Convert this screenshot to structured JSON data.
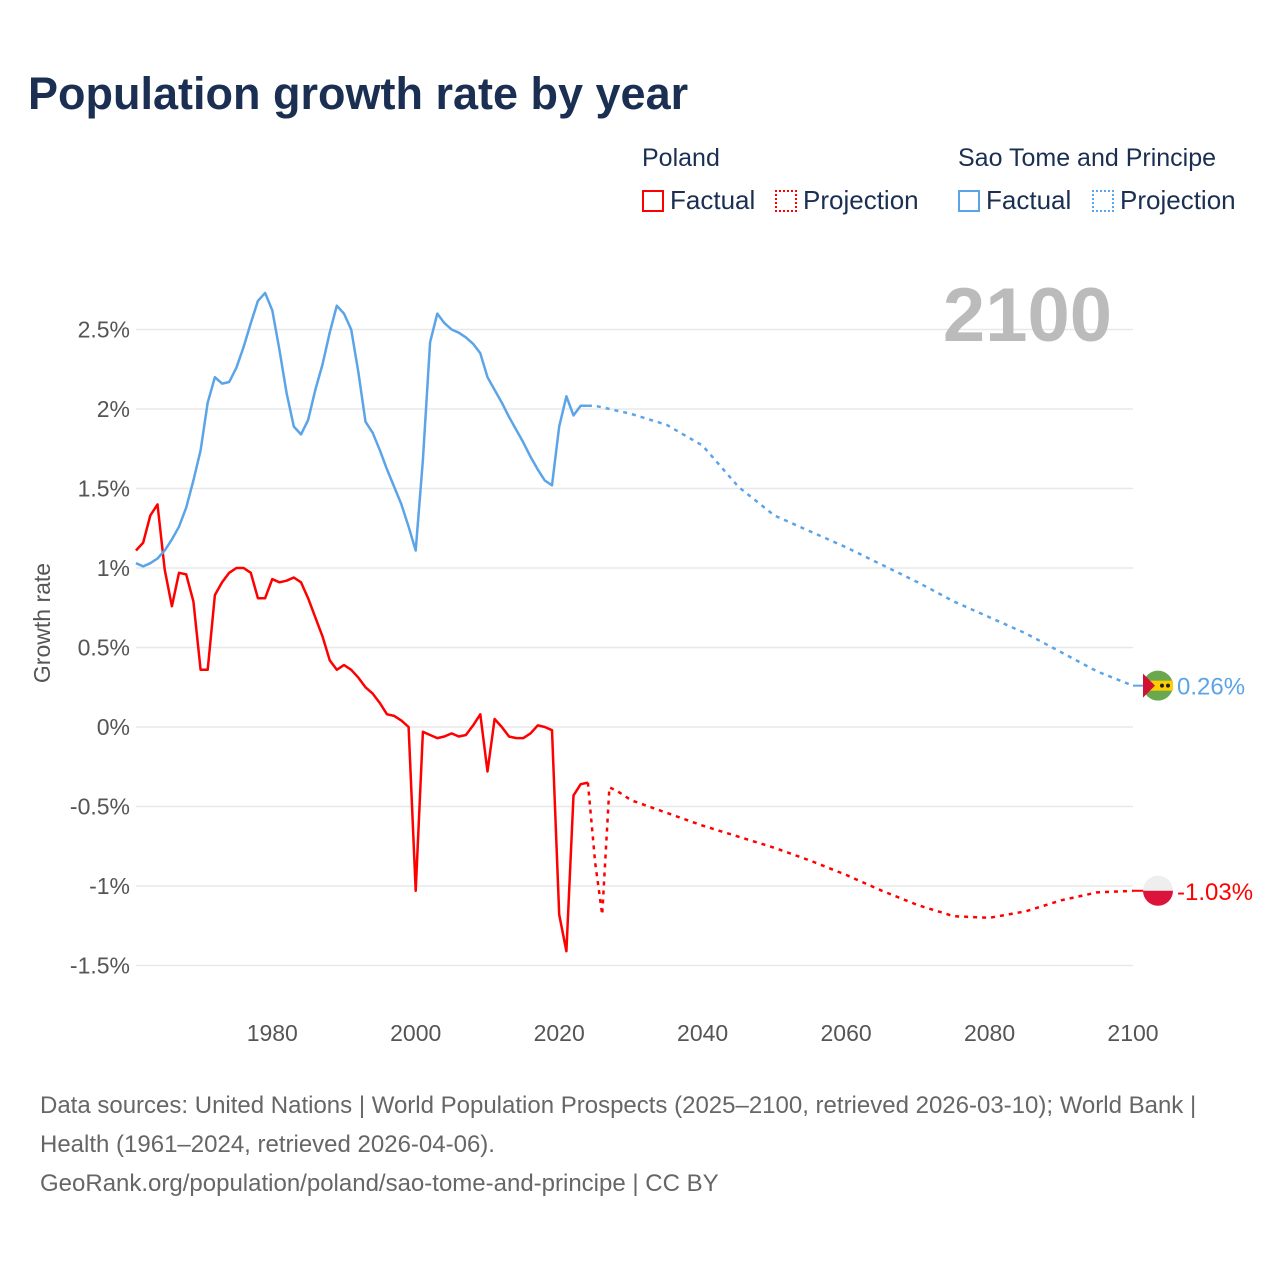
{
  "chart_data": {
    "type": "line",
    "title": "Population growth rate by year",
    "ylabel": "Growth rate",
    "xlabel": "",
    "xlim": [
      1961,
      2100
    ],
    "ylim": [
      -1.5,
      2.7
    ],
    "x_ticks": [
      "1980",
      "2000",
      "2020",
      "2040",
      "2060",
      "2080",
      "2100"
    ],
    "y_ticks": [
      {
        "v": 2.5,
        "label": "2.5%"
      },
      {
        "v": 2,
        "label": "2%"
      },
      {
        "v": 1.5,
        "label": "1.5%"
      },
      {
        "v": 1,
        "label": "1%"
      },
      {
        "v": 0.5,
        "label": "0.5%"
      },
      {
        "v": 0,
        "label": "0%"
      },
      {
        "v": -0.5,
        "label": "-0.5%"
      },
      {
        "v": -1,
        "label": "-1%"
      },
      {
        "v": -1.5,
        "label": "-1.5%"
      }
    ],
    "grid": true,
    "current_year_label": "2100",
    "series": [
      {
        "name": "Poland",
        "color": "#ff0000",
        "end_label": "-1.03%",
        "factual": {
          "x": [
            1961,
            1962,
            1963,
            1964,
            1965,
            1966,
            1967,
            1968,
            1969,
            1970,
            1971,
            1972,
            1973,
            1974,
            1975,
            1976,
            1977,
            1978,
            1979,
            1980,
            1981,
            1982,
            1983,
            1984,
            1985,
            1986,
            1987,
            1988,
            1989,
            1990,
            1991,
            1992,
            1993,
            1994,
            1995,
            1996,
            1997,
            1998,
            1999,
            2000,
            2001,
            2002,
            2003,
            2004,
            2005,
            2006,
            2007,
            2008,
            2009,
            2010,
            2011,
            2012,
            2013,
            2014,
            2015,
            2016,
            2017,
            2018,
            2019,
            2020,
            2021,
            2022,
            2023,
            2024
          ],
          "y": [
            1.11,
            1.16,
            1.33,
            1.4,
            0.99,
            0.76,
            0.97,
            0.96,
            0.79,
            0.36,
            0.36,
            0.83,
            0.91,
            0.97,
            1.0,
            1.0,
            0.97,
            0.81,
            0.81,
            0.93,
            0.91,
            0.92,
            0.94,
            0.91,
            0.81,
            0.69,
            0.57,
            0.42,
            0.36,
            0.39,
            0.36,
            0.31,
            0.25,
            0.21,
            0.15,
            0.08,
            0.07,
            0.04,
            0.0,
            -1.03,
            -0.03,
            -0.05,
            -0.07,
            -0.06,
            -0.04,
            -0.06,
            -0.05,
            0.01,
            0.08,
            -0.28,
            0.05,
            0.0,
            -0.06,
            -0.07,
            -0.07,
            -0.04,
            0.01,
            0.0,
            -0.02,
            -1.18,
            -1.41,
            -0.43,
            -0.36,
            -0.35
          ]
        },
        "projection": {
          "x": [
            2024,
            2025,
            2026,
            2027,
            2028,
            2030,
            2035,
            2040,
            2045,
            2050,
            2055,
            2060,
            2065,
            2070,
            2075,
            2080,
            2085,
            2090,
            2095,
            2100
          ],
          "y": [
            -0.35,
            -0.85,
            -1.18,
            -0.38,
            -0.4,
            -0.46,
            -0.54,
            -0.62,
            -0.69,
            -0.76,
            -0.84,
            -0.93,
            -1.03,
            -1.12,
            -1.19,
            -1.2,
            -1.16,
            -1.09,
            -1.04,
            -1.03
          ]
        }
      },
      {
        "name": "Sao Tome and Principe",
        "color": "#5ba4e8",
        "end_label": "0.26%",
        "factual": {
          "x": [
            1961,
            1962,
            1963,
            1964,
            1965,
            1966,
            1967,
            1968,
            1969,
            1970,
            1971,
            1972,
            1973,
            1974,
            1975,
            1976,
            1977,
            1978,
            1979,
            1980,
            1981,
            1982,
            1983,
            1984,
            1985,
            1986,
            1987,
            1988,
            1989,
            1990,
            1991,
            1992,
            1993,
            1994,
            1995,
            1996,
            1997,
            1998,
            1999,
            2000,
            2001,
            2002,
            2003,
            2004,
            2005,
            2006,
            2007,
            2008,
            2009,
            2010,
            2011,
            2012,
            2013,
            2014,
            2015,
            2016,
            2017,
            2018,
            2019,
            2020,
            2021,
            2022,
            2023,
            2024
          ],
          "y": [
            1.03,
            1.01,
            1.03,
            1.06,
            1.11,
            1.18,
            1.26,
            1.38,
            1.55,
            1.74,
            2.04,
            2.2,
            2.16,
            2.17,
            2.26,
            2.39,
            2.54,
            2.68,
            2.73,
            2.62,
            2.37,
            2.1,
            1.89,
            1.84,
            1.93,
            2.12,
            2.28,
            2.48,
            2.65,
            2.6,
            2.5,
            2.23,
            1.92,
            1.85,
            1.74,
            1.62,
            1.51,
            1.4,
            1.26,
            1.11,
            1.68,
            2.42,
            2.6,
            2.54,
            2.5,
            2.48,
            2.45,
            2.41,
            2.35,
            2.2,
            2.12,
            2.04,
            1.95,
            1.87,
            1.79,
            1.7,
            1.62,
            1.55,
            1.52,
            1.89,
            2.08,
            1.96,
            2.02,
            2.02
          ]
        },
        "projection": {
          "x": [
            2024,
            2025,
            2030,
            2035,
            2040,
            2045,
            2050,
            2055,
            2060,
            2065,
            2070,
            2075,
            2080,
            2085,
            2090,
            2095,
            2100
          ],
          "y": [
            2.02,
            2.02,
            1.97,
            1.9,
            1.77,
            1.51,
            1.33,
            1.23,
            1.13,
            1.02,
            0.91,
            0.79,
            0.69,
            0.59,
            0.47,
            0.35,
            0.26
          ]
        }
      }
    ]
  },
  "legend": {
    "poland": "Poland",
    "stp": "Sao Tome and Principe",
    "factual": "Factual",
    "projection": "Projection"
  },
  "footer": {
    "sources": "Data sources: United Nations | World Population Prospects (2025–2100, retrieved 2026-03-10); World Bank | Health (1961–2024, retrieved 2026-04-06).",
    "link": "GeoRank.org/population/poland/sao-tome-and-principe | CC BY"
  }
}
